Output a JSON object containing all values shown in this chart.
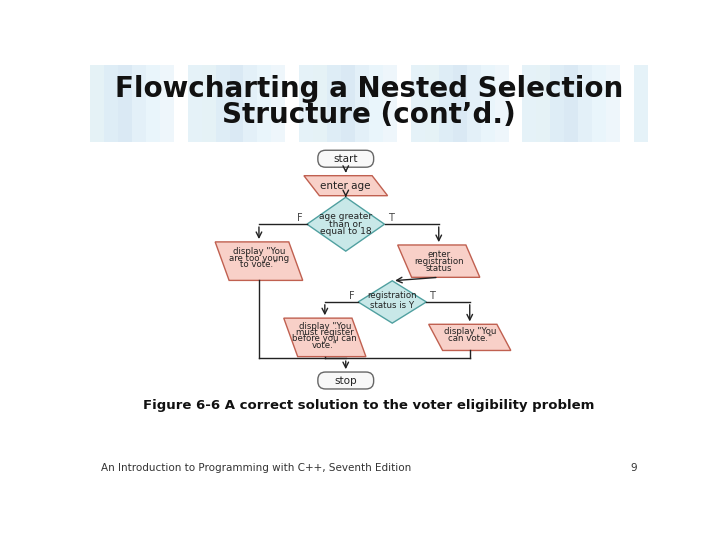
{
  "title_line1": "Flowcharting a Nested Selection",
  "title_line2": "Structure (cont’d.)",
  "title_fontsize": 20,
  "bg_color": "#ffffff",
  "figure_caption": "Figure 6-6 A correct solution to the voter eligibility problem",
  "footer_text": "An Introduction to Programming with C++, Seventh Edition",
  "footer_page": "9",
  "header_stripe_colors": [
    "#d0e8f0",
    "#c4dff0",
    "#bcd8ec",
    "#cce4f4",
    "#d8eef8",
    "#e0f0f8",
    "#ffffff",
    "#d0e8f4"
  ],
  "flowchart": {
    "start_stop_facecolor": "#f8f8f8",
    "start_stop_edgecolor": "#666666",
    "io_facecolor": "#f8d0c8",
    "io_edgecolor": "#c06050",
    "decision_facecolor": "#c8e8e8",
    "decision_edgecolor": "#50a0a0",
    "arrow_color": "#222222",
    "line_color": "#222222",
    "text_color": "#222222",
    "label_color": "#444444"
  }
}
